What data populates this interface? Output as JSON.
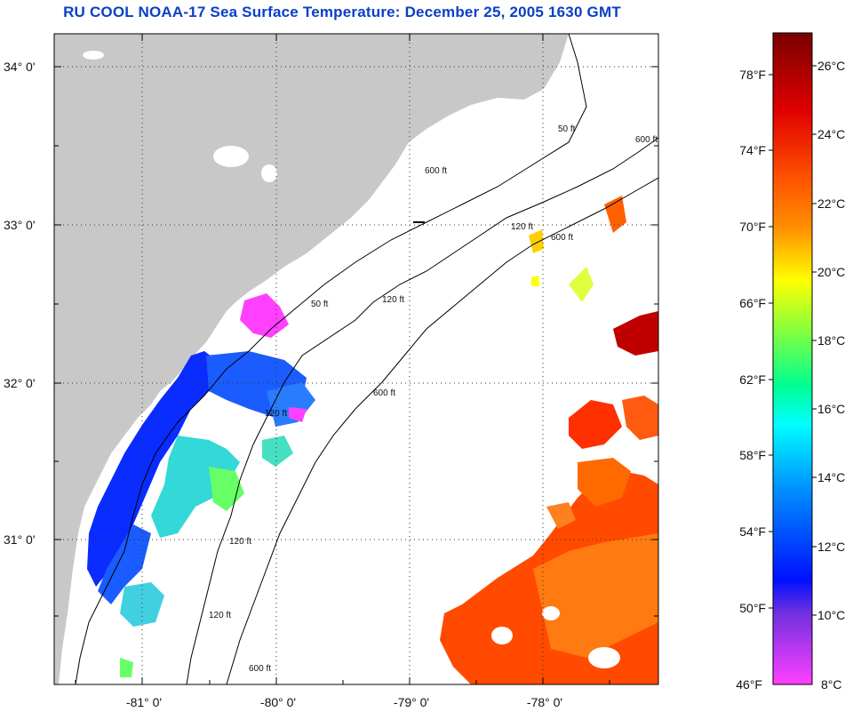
{
  "title": "RU COOL  NOAA-17  Sea Surface Temperature:  December 25, 2005 1630 GMT",
  "map": {
    "lat_ticks": [
      {
        "label": "34° 0'",
        "value": 34.0
      },
      {
        "label": "33° 0'",
        "value": 33.0
      },
      {
        "label": "32° 0'",
        "value": 32.0
      },
      {
        "label": "31° 0'",
        "value": 31.0
      }
    ],
    "lon_ticks": [
      {
        "label": "-81° 0'",
        "value": -81.0
      },
      {
        "label": "-80° 0'",
        "value": -80.0
      },
      {
        "label": "-79° 0'",
        "value": -79.0
      },
      {
        "label": "-78° 0'",
        "value": -78.0
      }
    ],
    "contour_labels": [
      "50 ft",
      "50 ft",
      "120 ft",
      "120 ft",
      "120 ft",
      "120 ft",
      "120 ft",
      "600 ft",
      "600 ft",
      "600 ft",
      "600 ft",
      "600 ft"
    ],
    "land_color": "#c8c8c8",
    "no_data_color": "#ffffff"
  },
  "colorbar": {
    "fahrenheit_labels": [
      "78°F",
      "74°F",
      "70°F",
      "66°F",
      "62°F",
      "58°F",
      "54°F",
      "50°F",
      "46°F"
    ],
    "celsius_labels": [
      "26°C",
      "24°C",
      "22°C",
      "20°C",
      "18°C",
      "16°C",
      "14°C",
      "12°C",
      "10°C",
      "8°C"
    ],
    "colors_top_to_bottom": [
      "#800000",
      "#ff0000",
      "#ff8000",
      "#ffff00",
      "#00ff80",
      "#00ffff",
      "#0080ff",
      "#0000ff",
      "#8040ff",
      "#ff40ff"
    ]
  }
}
